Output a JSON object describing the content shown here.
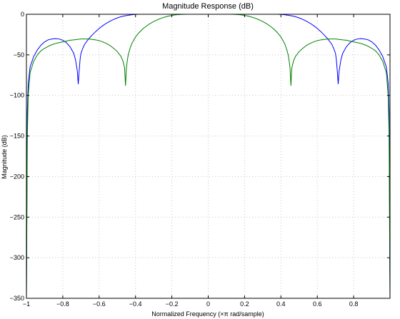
{
  "chart_data": {
    "type": "line",
    "title": "Magnitude Response (dB)",
    "xlabel": "Normalized Frequency (×π rad/sample)",
    "ylabel": "Magnitude (dB)",
    "xlim": [
      -1,
      1
    ],
    "ylim": [
      -350,
      0
    ],
    "xticks": [
      -1,
      -0.8,
      -0.6,
      -0.4,
      -0.2,
      0,
      0.2,
      0.4,
      0.6,
      0.8
    ],
    "xtick_labels": [
      "−1",
      "−0.8",
      "−0.6",
      "−0.4",
      "−0.2",
      "0",
      "0.2",
      "0.4",
      "0.6",
      "0.8"
    ],
    "yticks": [
      0,
      -50,
      -100,
      -150,
      -200,
      -250,
      -300,
      -350
    ],
    "ytick_labels": [
      "0",
      "−50",
      "−100",
      "−150",
      "−200",
      "−250",
      "−300",
      "−350"
    ],
    "grid": true,
    "series": [
      {
        "color": "#0000ff",
        "x": [
          -1,
          -0.995,
          -0.99,
          -0.98,
          -0.96,
          -0.94,
          -0.92,
          -0.9,
          -0.88,
          -0.86,
          -0.84,
          -0.82,
          -0.8,
          -0.78,
          -0.76,
          -0.74,
          -0.73,
          -0.72,
          -0.715,
          -0.71,
          -0.705,
          -0.7,
          -0.69,
          -0.68,
          -0.66,
          -0.64,
          -0.62,
          -0.6,
          -0.58,
          -0.56,
          -0.54,
          -0.52,
          -0.5,
          -0.48,
          -0.46,
          -0.44,
          -0.42,
          -0.4,
          -0.38,
          -0.36,
          -0.34,
          -0.32,
          -0.3,
          -0.28,
          -0.26,
          -0.24,
          -0.22,
          -0.2,
          0,
          0.2,
          0.22,
          0.24,
          0.26,
          0.28,
          0.3,
          0.32,
          0.34,
          0.36,
          0.38,
          0.4,
          0.42,
          0.44,
          0.46,
          0.48,
          0.5,
          0.52,
          0.54,
          0.56,
          0.58,
          0.6,
          0.62,
          0.64,
          0.66,
          0.68,
          0.69,
          0.7,
          0.705,
          0.71,
          0.715,
          0.72,
          0.73,
          0.74,
          0.76,
          0.78,
          0.8,
          0.82,
          0.84,
          0.86,
          0.88,
          0.9,
          0.92,
          0.94,
          0.96,
          0.98,
          0.99,
          0.995,
          1
        ],
        "y": [
          -350,
          -120,
          -85,
          -65,
          -52,
          -44,
          -38,
          -34,
          -31.5,
          -30.5,
          -30,
          -30.5,
          -32,
          -35,
          -40,
          -48,
          -56,
          -70,
          -86,
          -70,
          -56,
          -48,
          -42,
          -37,
          -31,
          -26,
          -21.5,
          -17.5,
          -14,
          -11,
          -8.5,
          -6.3,
          -4.5,
          -3,
          -2,
          -1.2,
          -0.6,
          -0.2,
          0,
          0,
          0,
          0,
          0,
          0,
          0,
          0,
          0,
          0,
          0,
          0,
          0,
          0,
          0,
          0,
          0,
          0,
          0,
          0,
          0,
          -0.2,
          -0.6,
          -1.2,
          -2,
          -3,
          -4.5,
          -6.3,
          -8.5,
          -11,
          -14,
          -17.5,
          -21.5,
          -26,
          -31,
          -37,
          -42,
          -48,
          -56,
          -70,
          -86,
          -70,
          -56,
          -48,
          -40,
          -35,
          -32,
          -30.5,
          -30,
          -30.5,
          -31.5,
          -34,
          -38,
          -44,
          -52,
          -65,
          -85,
          -120,
          -350
        ]
      },
      {
        "color": "#008000",
        "x": [
          -1,
          -0.995,
          -0.99,
          -0.98,
          -0.96,
          -0.94,
          -0.92,
          -0.9,
          -0.88,
          -0.86,
          -0.84,
          -0.82,
          -0.8,
          -0.78,
          -0.76,
          -0.74,
          -0.72,
          -0.7,
          -0.68,
          -0.66,
          -0.64,
          -0.62,
          -0.6,
          -0.58,
          -0.56,
          -0.54,
          -0.52,
          -0.5,
          -0.48,
          -0.47,
          -0.46,
          -0.455,
          -0.45,
          -0.445,
          -0.44,
          -0.43,
          -0.42,
          -0.4,
          -0.38,
          -0.36,
          -0.34,
          -0.32,
          -0.3,
          -0.28,
          -0.26,
          -0.24,
          -0.22,
          -0.2,
          -0.18,
          -0.16,
          -0.14,
          -0.12,
          -0.1,
          0,
          0.1,
          0.12,
          0.14,
          0.16,
          0.18,
          0.2,
          0.22,
          0.24,
          0.26,
          0.28,
          0.3,
          0.32,
          0.34,
          0.36,
          0.38,
          0.4,
          0.42,
          0.43,
          0.44,
          0.445,
          0.45,
          0.455,
          0.46,
          0.47,
          0.48,
          0.5,
          0.52,
          0.54,
          0.56,
          0.58,
          0.6,
          0.62,
          0.64,
          0.66,
          0.68,
          0.7,
          0.72,
          0.74,
          0.76,
          0.78,
          0.8,
          0.82,
          0.84,
          0.86,
          0.88,
          0.9,
          0.92,
          0.94,
          0.96,
          0.98,
          0.99,
          0.995,
          1
        ],
        "y": [
          -350,
          -150,
          -100,
          -72,
          -58,
          -50,
          -45,
          -42,
          -39.5,
          -37.5,
          -36,
          -35,
          -34,
          -33,
          -32,
          -31.5,
          -31,
          -30.5,
          -30.5,
          -30.5,
          -31,
          -31.5,
          -32.5,
          -34,
          -36,
          -38.5,
          -42,
          -46,
          -52,
          -57,
          -66,
          -88,
          -66,
          -57,
          -50,
          -42,
          -36,
          -28,
          -22.5,
          -18,
          -14.5,
          -11.5,
          -9,
          -6.8,
          -5,
          -3.5,
          -2.3,
          -1.4,
          -0.7,
          -0.3,
          -0.1,
          0,
          0,
          0,
          0,
          0,
          -0.1,
          -0.3,
          -0.7,
          -1.4,
          -2.3,
          -3.5,
          -5,
          -6.8,
          -9,
          -11.5,
          -14.5,
          -18,
          -22.5,
          -28,
          -36,
          -42,
          -50,
          -57,
          -66,
          -88,
          -66,
          -57,
          -52,
          -46,
          -42,
          -38.5,
          -36,
          -34,
          -32.5,
          -31.5,
          -31,
          -30.5,
          -30.5,
          -30.5,
          -31,
          -31.5,
          -32,
          -33,
          -34,
          -35,
          -36,
          -37.5,
          -39.5,
          -42,
          -45,
          -50,
          -58,
          -72,
          -100,
          -150,
          -350
        ]
      }
    ]
  }
}
